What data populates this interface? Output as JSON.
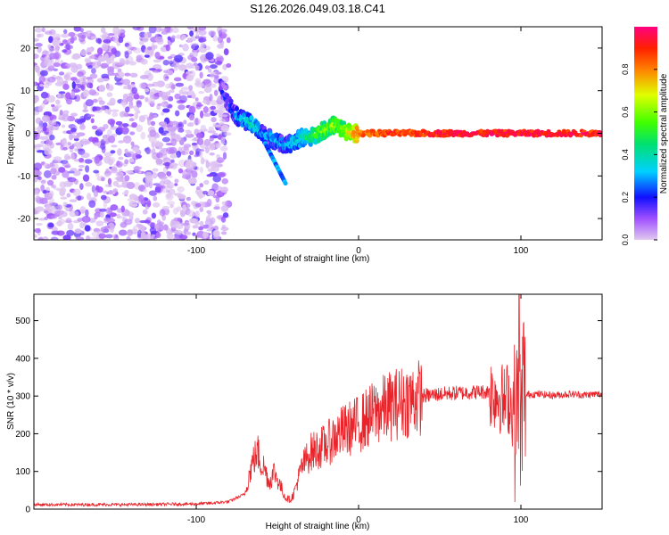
{
  "title": "S126.2026.049.03.18.C41",
  "chart_data": [
    {
      "type": "heatmap",
      "xlabel": "Height of straight line (km)",
      "ylabel": "Frequency (Hz)",
      "xlim": [
        -200,
        150
      ],
      "ylim": [
        -25,
        25
      ],
      "xticks": [
        -100,
        0,
        100
      ],
      "yticks": [
        -20,
        -10,
        0,
        10,
        20
      ],
      "description_series": [
        {
          "name": "dense noise region",
          "x_range": [
            -200,
            -85
          ],
          "freq_range": [
            -25,
            25
          ],
          "amplitude": "low (0.0-0.15)"
        },
        {
          "name": "signal track",
          "x": [
            -85,
            -80,
            -75,
            -70,
            -65,
            -60,
            -55,
            -50,
            -45,
            -40,
            -35,
            -30,
            -25,
            -20,
            -15,
            -10,
            -5,
            0,
            50,
            100,
            150
          ],
          "freq": [
            11,
            7,
            4,
            3,
            2,
            0,
            -1,
            -2,
            -3,
            -2,
            -1,
            -1,
            0,
            1,
            2,
            1,
            0,
            0,
            0,
            0,
            0
          ],
          "amplitude": [
            0.2,
            0.2,
            0.3,
            0.35,
            0.4,
            0.3,
            0.3,
            0.3,
            0.3,
            0.35,
            0.4,
            0.45,
            0.55,
            0.6,
            0.6,
            0.6,
            0.7,
            0.85,
            0.95,
            0.95,
            0.95
          ]
        }
      ],
      "colorbar": {
        "label": "Normalized spectral amplitude",
        "range": [
          0,
          1
        ],
        "ticks": [
          0.0,
          0.2,
          0.4,
          0.6,
          0.8
        ]
      }
    },
    {
      "type": "line",
      "xlabel": "Height of straight line (km)",
      "ylabel": "SNR (10 * v/v)",
      "xlim": [
        -200,
        150
      ],
      "ylim": [
        0,
        570
      ],
      "xticks": [
        -100,
        0,
        100
      ],
      "yticks": [
        0,
        100,
        200,
        300,
        400,
        500
      ],
      "series": [
        {
          "name": "SNR",
          "color": "#e8242a",
          "x": [
            -200,
            -180,
            -160,
            -140,
            -120,
            -100,
            -90,
            -80,
            -70,
            -68,
            -65,
            -62,
            -60,
            -58,
            -55,
            -52,
            -50,
            -48,
            -45,
            -42,
            -40,
            -38,
            -35,
            -30,
            -25,
            -20,
            -15,
            -10,
            -5,
            0,
            5,
            10,
            15,
            20,
            25,
            30,
            40,
            50,
            60,
            70,
            80,
            85,
            88,
            90,
            92,
            95,
            97,
            99,
            100,
            101,
            103,
            105,
            110,
            120,
            130,
            140,
            150
          ],
          "y": [
            12,
            12,
            12,
            12,
            13,
            14,
            16,
            20,
            40,
            80,
            130,
            150,
            120,
            110,
            70,
            100,
            80,
            60,
            30,
            25,
            40,
            70,
            110,
            150,
            160,
            170,
            190,
            205,
            215,
            225,
            240,
            255,
            265,
            275,
            282,
            288,
            300,
            305,
            308,
            310,
            312,
            305,
            295,
            280,
            300,
            260,
            210,
            420,
            150,
            350,
            300,
            305,
            305,
            302,
            305,
            303,
            306
          ]
        }
      ]
    }
  ]
}
